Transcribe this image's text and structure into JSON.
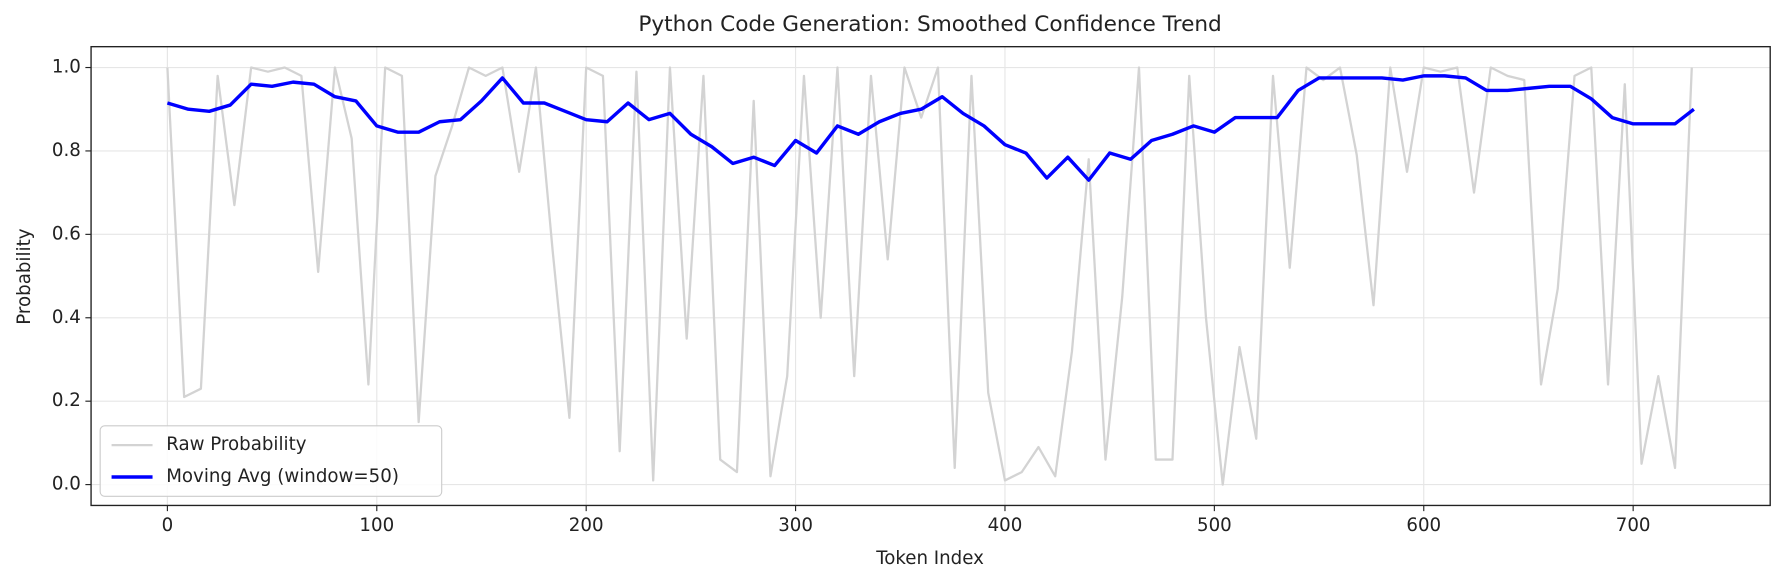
{
  "chart_data": {
    "type": "line",
    "title": "Python Code Generation: Smoothed Confidence Trend",
    "xlabel": "Token Index",
    "ylabel": "Probability",
    "xlim": [
      -36.45,
      765.45
    ],
    "ylim": [
      -0.05,
      1.05
    ],
    "xticks": [
      0,
      100,
      200,
      300,
      400,
      500,
      600,
      700
    ],
    "yticks": [
      {
        "value": 0,
        "label": "0.0"
      },
      {
        "value": 0.2,
        "label": "0.2"
      },
      {
        "value": 0.4,
        "label": "0.4"
      },
      {
        "value": 0.6,
        "label": "0.6"
      },
      {
        "value": 0.8,
        "label": "0.8"
      },
      {
        "value": 1,
        "label": "1.0"
      }
    ],
    "grid": true,
    "legend": "lower left",
    "series": [
      {
        "name": "Raw Probability",
        "color": "#d3d3d3",
        "x": [
          0,
          8,
          16,
          24,
          32,
          40,
          48,
          56,
          64,
          72,
          80,
          88,
          96,
          104,
          112,
          120,
          128,
          136,
          144,
          152,
          160,
          168,
          176,
          184,
          192,
          200,
          208,
          216,
          224,
          232,
          240,
          248,
          256,
          264,
          272,
          280,
          288,
          296,
          304,
          312,
          320,
          328,
          336,
          344,
          352,
          360,
          368,
          376,
          384,
          392,
          400,
          408,
          416,
          424,
          432,
          440,
          448,
          456,
          464,
          472,
          480,
          488,
          496,
          504,
          512,
          520,
          528,
          536,
          544,
          552,
          560,
          568,
          576,
          584,
          592,
          600,
          608,
          616,
          624,
          632,
          640,
          648,
          656,
          664,
          672,
          680,
          688,
          696,
          704,
          712,
          720,
          728
        ],
        "values": [
          1,
          0.21,
          0.23,
          0.98,
          0.67,
          1,
          0.99,
          1,
          0.98,
          0.51,
          1,
          0.83,
          0.24,
          1,
          0.98,
          0.15,
          0.74,
          0.86,
          1,
          0.98,
          1,
          0.75,
          1,
          0.56,
          0.16,
          1,
          0.98,
          0.08,
          0.99,
          0.01,
          1,
          0.35,
          0.98,
          0.06,
          0.03,
          0.92,
          0.02,
          0.26,
          0.98,
          0.4,
          1,
          0.26,
          0.98,
          0.54,
          1,
          0.88,
          1,
          0.04,
          0.98,
          0.22,
          0.01,
          0.03,
          0.09,
          0.02,
          0.32,
          0.78,
          0.06,
          0.45,
          1,
          0.06,
          0.06,
          0.98,
          0.4,
          0,
          0.33,
          0.11,
          0.98,
          0.52,
          1,
          0.97,
          1,
          0.79,
          0.43,
          1,
          0.75,
          1,
          0.99,
          1,
          0.7,
          1,
          0.98,
          0.97,
          0.24,
          0.47,
          0.98,
          1,
          0.24,
          0.96,
          0.05,
          0.26,
          0.04,
          1
        ]
      },
      {
        "name": "Moving Avg (window=50)",
        "color": "#0000ff",
        "x": [
          0,
          10,
          20,
          30,
          40,
          50,
          60,
          70,
          80,
          90,
          100,
          110,
          120,
          130,
          140,
          150,
          160,
          170,
          180,
          190,
          200,
          210,
          220,
          230,
          240,
          250,
          260,
          270,
          280,
          290,
          300,
          310,
          320,
          330,
          340,
          350,
          360,
          370,
          380,
          390,
          400,
          410,
          420,
          430,
          440,
          450,
          460,
          470,
          480,
          490,
          500,
          510,
          520,
          530,
          540,
          550,
          560,
          570,
          580,
          590,
          600,
          610,
          620,
          630,
          640,
          650,
          660,
          670,
          680,
          690,
          700,
          710,
          720,
          729
        ],
        "values": [
          0.915,
          0.9,
          0.895,
          0.91,
          0.96,
          0.955,
          0.965,
          0.96,
          0.93,
          0.92,
          0.86,
          0.845,
          0.845,
          0.87,
          0.875,
          0.92,
          0.975,
          0.915,
          0.915,
          0.895,
          0.875,
          0.87,
          0.915,
          0.875,
          0.89,
          0.84,
          0.81,
          0.77,
          0.785,
          0.765,
          0.825,
          0.795,
          0.86,
          0.84,
          0.87,
          0.89,
          0.9,
          0.93,
          0.89,
          0.86,
          0.815,
          0.795,
          0.735,
          0.785,
          0.73,
          0.795,
          0.78,
          0.825,
          0.84,
          0.86,
          0.845,
          0.88,
          0.88,
          0.88,
          0.945,
          0.975,
          0.975,
          0.975,
          0.975,
          0.97,
          0.98,
          0.98,
          0.975,
          0.945,
          0.945,
          0.95,
          0.955,
          0.955,
          0.925,
          0.88,
          0.865,
          0.865,
          0.865,
          0.9
        ]
      }
    ]
  }
}
